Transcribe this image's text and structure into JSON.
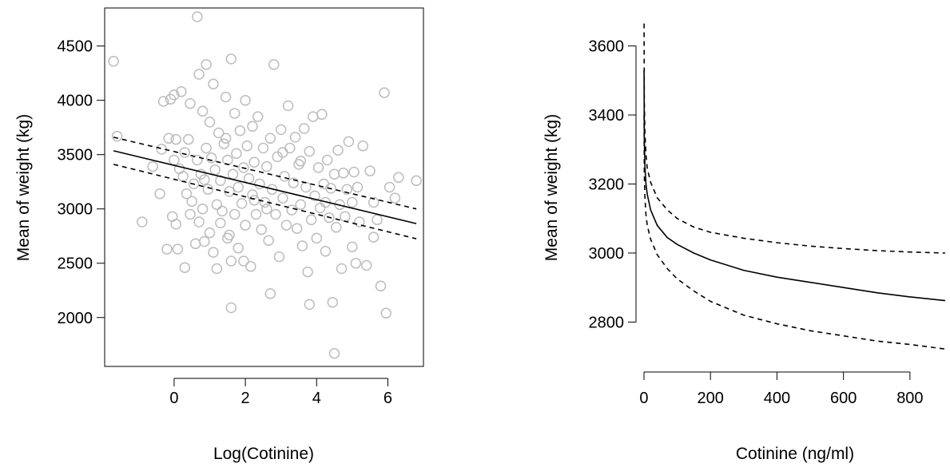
{
  "chart_data": [
    {
      "type": "scatter",
      "xlabel": "Log(Cotinine)",
      "ylabel": "Mean of weight (kg)",
      "xlim": [
        -1.95,
        7.0
      ],
      "ylim": [
        1550,
        4850
      ],
      "xticks": [
        0,
        2,
        4,
        6
      ],
      "xtick_labels": [
        "0",
        "2",
        "4",
        "6"
      ],
      "yticks": [
        2000,
        2500,
        3000,
        3500,
        4000,
        4500
      ],
      "ytick_labels": [
        "2000",
        "2500",
        "3000",
        "3500",
        "4000",
        "4500"
      ],
      "grid": false,
      "point_color": "#bdbdbd",
      "points": [
        [
          -1.7,
          4360
        ],
        [
          -1.6,
          3670
        ],
        [
          -0.9,
          2880
        ],
        [
          -0.6,
          3390
        ],
        [
          -0.4,
          3140
        ],
        [
          -0.35,
          3550
        ],
        [
          -0.3,
          3990
        ],
        [
          -0.2,
          2630
        ],
        [
          -0.15,
          3650
        ],
        [
          -0.1,
          4010
        ],
        [
          -0.05,
          2930
        ],
        [
          0.0,
          4050
        ],
        [
          0.0,
          3450
        ],
        [
          0.05,
          2860
        ],
        [
          0.05,
          3640
        ],
        [
          0.1,
          2630
        ],
        [
          0.15,
          3370
        ],
        [
          0.2,
          4080
        ],
        [
          0.25,
          3300
        ],
        [
          0.3,
          2460
        ],
        [
          0.3,
          3520
        ],
        [
          0.35,
          3140
        ],
        [
          0.4,
          3640
        ],
        [
          0.45,
          3970
        ],
        [
          0.5,
          3070
        ],
        [
          0.55,
          3230
        ],
        [
          0.6,
          2680
        ],
        [
          0.65,
          3450
        ],
        [
          0.7,
          4240
        ],
        [
          0.7,
          2880
        ],
        [
          0.75,
          3320
        ],
        [
          0.8,
          3900
        ],
        [
          0.8,
          3000
        ],
        [
          0.85,
          2700
        ],
        [
          0.9,
          4330
        ],
        [
          0.9,
          3560
        ],
        [
          0.95,
          3180
        ],
        [
          1.0,
          3800
        ],
        [
          1.0,
          2780
        ],
        [
          1.05,
          3470
        ],
        [
          1.1,
          4150
        ],
        [
          1.1,
          2600
        ],
        [
          1.15,
          3360
        ],
        [
          1.2,
          3040
        ],
        [
          1.25,
          3700
        ],
        [
          1.3,
          2870
        ],
        [
          1.3,
          3260
        ],
        [
          1.35,
          2980
        ],
        [
          1.4,
          3600
        ],
        [
          1.45,
          4030
        ],
        [
          1.5,
          2730
        ],
        [
          1.5,
          3450
        ],
        [
          1.55,
          3160
        ],
        [
          1.6,
          4380
        ],
        [
          1.6,
          2520
        ],
        [
          1.65,
          3320
        ],
        [
          1.7,
          3880
        ],
        [
          1.7,
          2950
        ],
        [
          1.75,
          3510
        ],
        [
          1.8,
          2640
        ],
        [
          1.8,
          3200
        ],
        [
          1.85,
          3720
        ],
        [
          1.9,
          3050
        ],
        [
          1.95,
          3380
        ],
        [
          2.0,
          4000
        ],
        [
          2.0,
          2850
        ],
        [
          2.05,
          3580
        ],
        [
          2.1,
          3280
        ],
        [
          2.15,
          2470
        ],
        [
          2.2,
          3760
        ],
        [
          2.2,
          3130
        ],
        [
          2.25,
          3430
        ],
        [
          2.3,
          2950
        ],
        [
          2.35,
          3850
        ],
        [
          2.4,
          3230
        ],
        [
          2.45,
          2810
        ],
        [
          2.5,
          3560
        ],
        [
          2.55,
          3060
        ],
        [
          2.6,
          3390
        ],
        [
          2.65,
          2710
        ],
        [
          2.7,
          3650
        ],
        [
          2.75,
          3180
        ],
        [
          2.8,
          4330
        ],
        [
          2.85,
          2950
        ],
        [
          2.9,
          3480
        ],
        [
          2.95,
          2560
        ],
        [
          3.0,
          3730
        ],
        [
          3.05,
          3100
        ],
        [
          3.1,
          3300
        ],
        [
          3.15,
          2850
        ],
        [
          3.2,
          3950
        ],
        [
          3.25,
          3560
        ],
        [
          3.3,
          2990
        ],
        [
          3.35,
          3240
        ],
        [
          3.4,
          3660
        ],
        [
          3.45,
          2820
        ],
        [
          3.5,
          3410
        ],
        [
          3.55,
          3040
        ],
        [
          3.6,
          2660
        ],
        [
          3.65,
          3740
        ],
        [
          3.7,
          3200
        ],
        [
          3.75,
          2420
        ],
        [
          3.8,
          3530
        ],
        [
          3.85,
          2900
        ],
        [
          3.9,
          3850
        ],
        [
          3.95,
          3120
        ],
        [
          4.0,
          2730
        ],
        [
          4.05,
          3380
        ],
        [
          4.1,
          3010
        ],
        [
          4.15,
          3870
        ],
        [
          4.2,
          3230
        ],
        [
          4.25,
          2610
        ],
        [
          4.3,
          3450
        ],
        [
          4.35,
          2920
        ],
        [
          4.4,
          3190
        ],
        [
          4.45,
          2140
        ],
        [
          4.5,
          3320
        ],
        [
          4.5,
          1670
        ],
        [
          4.55,
          2830
        ],
        [
          4.6,
          3540
        ],
        [
          4.65,
          3040
        ],
        [
          4.7,
          2450
        ],
        [
          4.75,
          3330
        ],
        [
          4.8,
          2930
        ],
        [
          4.85,
          3180
        ],
        [
          4.9,
          3620
        ],
        [
          5.0,
          2650
        ],
        [
          5.0,
          3060
        ],
        [
          5.05,
          3340
        ],
        [
          5.1,
          2500
        ],
        [
          5.15,
          3200
        ],
        [
          5.2,
          2880
        ],
        [
          5.3,
          3580
        ],
        [
          5.4,
          2480
        ],
        [
          5.5,
          3350
        ],
        [
          5.6,
          2740
        ],
        [
          5.6,
          3060
        ],
        [
          5.7,
          2900
        ],
        [
          5.8,
          2290
        ],
        [
          5.9,
          4070
        ],
        [
          5.95,
          2040
        ],
        [
          6.05,
          3200
        ],
        [
          6.2,
          3100
        ],
        [
          6.3,
          3290
        ],
        [
          6.8,
          3260
        ],
        [
          1.2,
          2450
        ],
        [
          1.6,
          2090
        ],
        [
          2.7,
          2220
        ],
        [
          3.8,
          2120
        ],
        [
          0.65,
          4770
        ],
        [
          1.45,
          3650
        ],
        [
          1.55,
          2760
        ],
        [
          0.85,
          3270
        ],
        [
          2.25,
          3080
        ],
        [
          3.05,
          3520
        ],
        [
          3.55,
          3440
        ],
        [
          4.25,
          3060
        ],
        [
          1.95,
          2520
        ],
        [
          2.6,
          3000
        ],
        [
          0.45,
          2950
        ]
      ],
      "lines": [
        {
          "style": "solid",
          "x": [
            -1.7,
            6.8
          ],
          "y": [
            3535,
            2865
          ]
        },
        {
          "style": "dashed",
          "x": [
            -1.7,
            6.8
          ],
          "y": [
            3660,
            3000
          ]
        },
        {
          "style": "dashed",
          "x": [
            -1.7,
            6.8
          ],
          "y": [
            3410,
            2725
          ]
        }
      ]
    },
    {
      "type": "line",
      "xlabel": "Cotinine (ng/ml)",
      "ylabel": "Mean of weight (kg)",
      "xlim": [
        -24,
        906
      ],
      "ylim": [
        2690,
        3710
      ],
      "xticks": [
        0,
        200,
        400,
        600,
        800
      ],
      "xtick_labels": [
        "0",
        "200",
        "400",
        "600",
        "800"
      ],
      "yticks": [
        2800,
        3000,
        3200,
        3400,
        3600
      ],
      "ytick_labels": [
        "2800",
        "3000",
        "3200",
        "3400",
        "3600"
      ],
      "grid": false,
      "series": [
        {
          "style": "solid",
          "x": [
            0.2,
            1,
            3,
            6,
            10,
            20,
            40,
            70,
            100,
            150,
            200,
            300,
            400,
            500,
            600,
            700,
            800,
            906
          ],
          "y": [
            3530,
            3330,
            3250,
            3200,
            3170,
            3125,
            3080,
            3045,
            3025,
            3000,
            2980,
            2950,
            2930,
            2915,
            2900,
            2885,
            2873,
            2862
          ]
        },
        {
          "style": "dashed",
          "x": [
            0.2,
            1,
            3,
            6,
            10,
            20,
            40,
            70,
            100,
            150,
            200,
            300,
            400,
            500,
            600,
            700,
            800,
            906
          ],
          "y": [
            3665,
            3440,
            3345,
            3285,
            3245,
            3205,
            3160,
            3125,
            3100,
            3075,
            3060,
            3043,
            3030,
            3020,
            3013,
            3007,
            3003,
            3000
          ]
        },
        {
          "style": "dashed",
          "x": [
            0.2,
            1,
            3,
            6,
            10,
            20,
            40,
            70,
            100,
            150,
            200,
            300,
            400,
            500,
            600,
            700,
            800,
            906
          ],
          "y": [
            3400,
            3230,
            3160,
            3110,
            3080,
            3040,
            2995,
            2955,
            2925,
            2890,
            2860,
            2820,
            2795,
            2775,
            2760,
            2745,
            2735,
            2722
          ]
        }
      ]
    }
  ]
}
